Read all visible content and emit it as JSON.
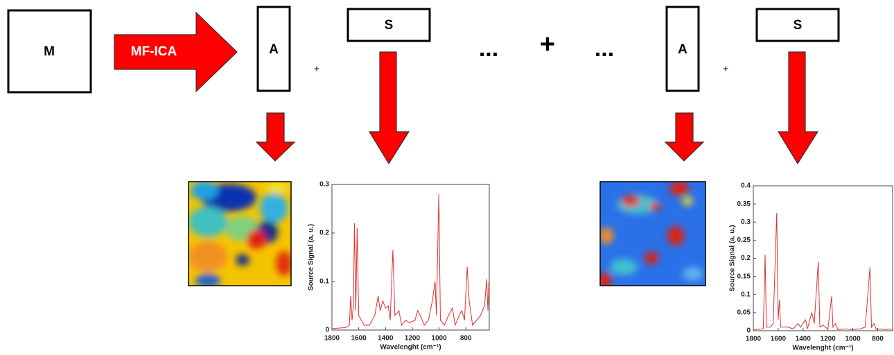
{
  "nodes": [
    {
      "label": "M"
    },
    {
      "label": "MF-ICA"
    },
    {
      "label": "A"
    },
    {
      "label": "S"
    },
    {
      "label": "A"
    },
    {
      "label": "S"
    }
  ],
  "operators": [
    "+",
    "...",
    "+",
    "...",
    "+"
  ],
  "chart_data": [
    {
      "type": "line",
      "y_label": "Source Signal (a. u.)",
      "x_label": "Wavelenght (cm⁻¹)",
      "color": "#e03030",
      "xlim": [
        1800,
        625
      ],
      "ylim": [
        0,
        0.3
      ],
      "xticks": [
        1800,
        1600,
        1400,
        1200,
        1000,
        800
      ],
      "yticks": [
        0,
        0.1,
        0.2,
        0.3
      ],
      "x": [
        1800,
        1700,
        1670,
        1660,
        1650,
        1640,
        1632,
        1622,
        1612,
        1600,
        1580,
        1560,
        1520,
        1480,
        1455,
        1440,
        1420,
        1400,
        1380,
        1365,
        1345,
        1330,
        1300,
        1280,
        1250,
        1220,
        1180,
        1160,
        1140,
        1110,
        1080,
        1050,
        1030,
        1020,
        1002,
        990,
        960,
        930,
        900,
        880,
        850,
        830,
        810,
        790,
        775,
        750,
        720,
        690,
        660,
        645,
        635,
        628,
        625
      ],
      "values": [
        0.003,
        0.005,
        0.01,
        0.07,
        0.02,
        0.05,
        0.22,
        0.04,
        0.21,
        0.03,
        0.02,
        0.01,
        0.01,
        0.03,
        0.07,
        0.04,
        0.06,
        0.045,
        0.05,
        0.02,
        0.165,
        0.03,
        0.04,
        0.01,
        0.02,
        0.015,
        0.02,
        0.04,
        0.03,
        0.01,
        0.02,
        0.06,
        0.1,
        0.03,
        0.28,
        0.02,
        0.01,
        0.03,
        0.045,
        0.01,
        0.03,
        0.04,
        0.02,
        0.13,
        0.06,
        0.01,
        0.02,
        0.03,
        0.05,
        0.105,
        0.04,
        0.1,
        0.07
      ]
    },
    {
      "type": "line",
      "y_label": "Source Signal (a. u.)",
      "x_label": "Wavelenght (cm⁻¹)",
      "color": "#e03030",
      "xlim": [
        1800,
        680
      ],
      "ylim": [
        0,
        0.4
      ],
      "xticks": [
        1800,
        1600,
        1400,
        1200,
        1000,
        800
      ],
      "yticks": [
        0,
        0.05,
        0.1,
        0.15,
        0.2,
        0.25,
        0.3,
        0.35,
        0.4
      ],
      "x": [
        1800,
        1720,
        1705,
        1695,
        1660,
        1640,
        1612,
        1600,
        1590,
        1580,
        1520,
        1480,
        1440,
        1420,
        1380,
        1365,
        1330,
        1310,
        1278,
        1265,
        1240,
        1200,
        1170,
        1160,
        1140,
        1120,
        1060,
        1000,
        940,
        900,
        862,
        850,
        830,
        810,
        780,
        740,
        700,
        680
      ],
      "values": [
        0.003,
        0.005,
        0.21,
        0.01,
        0.01,
        0.02,
        0.325,
        0.03,
        0.085,
        0.01,
        0.01,
        0.005,
        0.02,
        0.01,
        0.03,
        0.005,
        0.05,
        0.02,
        0.19,
        0.01,
        0.015,
        0.005,
        0.095,
        0.01,
        0.02,
        0.003,
        0.005,
        0.003,
        0.005,
        0.01,
        0.175,
        0.01,
        0.02,
        0.003,
        0.005,
        0.003,
        0.005,
        0.003
      ]
    }
  ]
}
